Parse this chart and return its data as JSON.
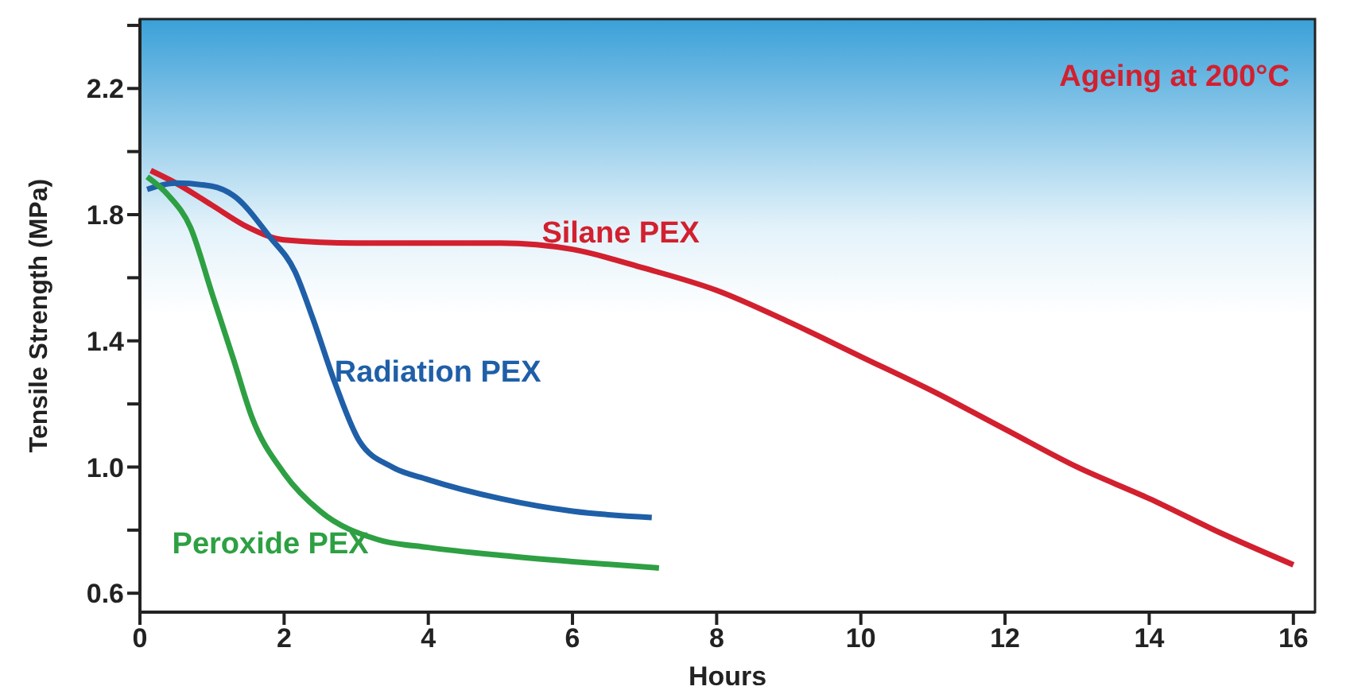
{
  "chart_data": {
    "type": "line",
    "xlabel": "Hours",
    "ylabel": "Tensile Strength (MPa)",
    "annotations": [
      "Ageing at 200°C"
    ],
    "xlim": [
      0,
      16.3
    ],
    "xticks": [
      0,
      2,
      4,
      6,
      8,
      10,
      12,
      14,
      16
    ],
    "ylim": [
      0.54,
      2.42
    ],
    "yticks": [
      0.6,
      {
        "value": 0.8,
        "label": null
      },
      {
        "value": 1,
        "label": "1.0"
      },
      {
        "value": 1.2,
        "label": null
      },
      1.4,
      {
        "value": 1.6,
        "label": null
      },
      1.8,
      {
        "value": 2.0,
        "label": null
      },
      2.2,
      {
        "value": 2.4,
        "label": null
      }
    ],
    "grid": false,
    "legend": false,
    "marker": "none",
    "line_style": "solid",
    "series": [
      {
        "name": "Silane PEX",
        "color": "#d2202f",
        "x": [
          0.15,
          0.5,
          1,
          1.5,
          2,
          3,
          4,
          5,
          6,
          7,
          8,
          9,
          10,
          11,
          12,
          13,
          14,
          15,
          16
        ],
        "values": [
          1.94,
          1.9,
          1.83,
          1.76,
          1.72,
          1.71,
          1.71,
          1.71,
          1.69,
          1.63,
          1.56,
          1.46,
          1.35,
          1.24,
          1.12,
          1.0,
          0.9,
          0.79,
          0.69
        ]
      },
      {
        "name": "Radiation PEX",
        "color": "#1f5fa8",
        "x": [
          0.1,
          0.5,
          1,
          1.3,
          1.8,
          2.15,
          2.4,
          2.7,
          3.05,
          3.5,
          4,
          5,
          6,
          7.1
        ],
        "values": [
          1.88,
          1.9,
          1.89,
          1.86,
          1.73,
          1.62,
          1.47,
          1.27,
          1.08,
          1.0,
          0.96,
          0.9,
          0.86,
          0.84
        ]
      },
      {
        "name": "Peroxide PEX",
        "color": "#2ea043",
        "x": [
          0.1,
          0.4,
          0.7,
          1,
          1.3,
          1.55,
          2,
          2.5,
          3.3,
          4,
          5,
          6,
          7.2
        ],
        "values": [
          1.92,
          1.86,
          1.76,
          1.55,
          1.34,
          1.16,
          0.98,
          0.86,
          0.77,
          0.745,
          0.72,
          0.7,
          0.68
        ]
      }
    ]
  }
}
